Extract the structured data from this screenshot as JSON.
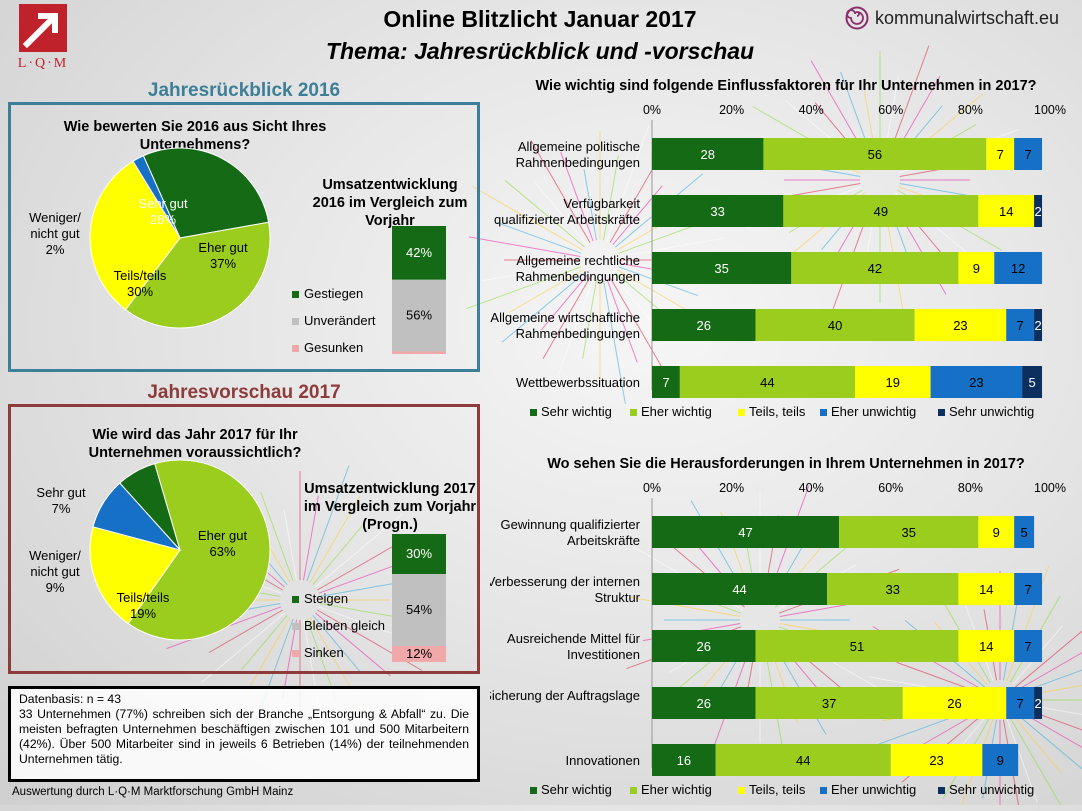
{
  "header": {
    "logo_text": "L·Q·M",
    "title_line1": "Online Blitzlicht Januar 2017",
    "title_line2": "Thema: Jahresrückblick und -vorschau",
    "brand": "kommunalwirtschaft.eu"
  },
  "colors": {
    "sehr_wichtig": "#156b15",
    "eher_wichtig": "#9acd1e",
    "teils": "#ffff00",
    "eher_unwichtig": "#1570c6",
    "sehr_unwichtig": "#0b2f5e",
    "gestiegen": "#156b15",
    "unveraendert": "#c0c0c0",
    "gesunken": "#f0a8a8",
    "panel1_border": "#3d7f98",
    "panel2_border": "#8e3b3b"
  },
  "rueckblick": {
    "section_title": "Jahresrückblick 2016",
    "pie_title": "Wie bewerten Sie 2016 aus Sicht Ihres Unternehmens?",
    "bar_title": "Umsatzentwicklung 2016 im Vergleich zum Vorjahr"
  },
  "vorschau": {
    "section_title": "Jahresvorschau 2017",
    "pie_title": "Wie wird das Jahr 2017 für Ihr Unternehmen voraussichtlich?",
    "bar_title": "Umsatzentwicklung 2017 im Vergleich zum Vorjahr (Progn.)"
  },
  "chart_data": [
    {
      "id": "pie2016",
      "type": "pie",
      "title": "Wie bewerten Sie 2016 aus Sicht Ihres Unternehmens?",
      "slices": [
        {
          "label": "Sehr gut",
          "value": 28,
          "color": "#156b15",
          "text_color": "#ffffff"
        },
        {
          "label": "Eher gut",
          "value": 37,
          "color": "#9acd1e",
          "text_color": "#000000"
        },
        {
          "label": "Teils/teils",
          "value": 30,
          "color": "#ffff00",
          "text_color": "#000000"
        },
        {
          "label": "Weniger/ nicht gut",
          "value": 2,
          "color": "#1570c6",
          "text_color": "#000000"
        }
      ]
    },
    {
      "id": "bar2016",
      "type": "bar",
      "stacked": true,
      "title": "Umsatzentwicklung 2016 im Vergleich zum Vorjahr",
      "series": [
        {
          "name": "Gestiegen",
          "value": 42,
          "color": "#156b15",
          "label": "42%"
        },
        {
          "name": "Unverändert",
          "value": 56,
          "color": "#c0c0c0",
          "label": "56%"
        },
        {
          "name": "Gesunken",
          "value": 2,
          "color": "#f0a8a8",
          "label": ""
        }
      ]
    },
    {
      "id": "pie2017",
      "type": "pie",
      "title": "Wie wird das Jahr 2017 für Ihr Unternehmen voraussichtlich?",
      "slices": [
        {
          "label": "Sehr gut",
          "value": 7,
          "color": "#156b15",
          "text_color": "#000000"
        },
        {
          "label": "Eher gut",
          "value": 63,
          "color": "#9acd1e",
          "text_color": "#000000"
        },
        {
          "label": "Teils/teils",
          "value": 19,
          "color": "#ffff00",
          "text_color": "#000000"
        },
        {
          "label": "Weniger/ nicht gut",
          "value": 9,
          "color": "#1570c6",
          "text_color": "#000000"
        }
      ]
    },
    {
      "id": "bar2017",
      "type": "bar",
      "stacked": true,
      "title": "Umsatzentwicklung 2017 im Vergleich zum Vorjahr (Progn.)",
      "series": [
        {
          "name": "Steigen",
          "value": 30,
          "color": "#156b15",
          "label": "30%"
        },
        {
          "name": "Bleiben gleich",
          "value": 54,
          "color": "#c0c0c0",
          "label": "54%"
        },
        {
          "name": "Sinken",
          "value": 12,
          "color": "#f0a8a8",
          "label": "12%"
        }
      ]
    },
    {
      "id": "einfluss",
      "type": "bar",
      "orientation": "horizontal",
      "stacked": true,
      "title": "Wie wichtig sind folgende Einflussfaktoren für Ihr Unternehmen in 2017?",
      "xlim": [
        0,
        100
      ],
      "ticks": [
        "0%",
        "20%",
        "40%",
        "60%",
        "80%",
        "100%"
      ],
      "categories": [
        "Allgemeine politische Rahmenbedingungen",
        "Verfügbarkeit qualifizierter Arbeitskräfte",
        "Allgemeine rechtliche Rahmenbedingungen",
        "Allgemeine wirtschaftliche Rahmenbedingungen",
        "Wettbewerbssituation"
      ],
      "series": [
        {
          "name": "Sehr wichtig",
          "values": [
            28,
            33,
            35,
            26,
            7
          ]
        },
        {
          "name": "Eher wichtig",
          "values": [
            56,
            49,
            42,
            40,
            44
          ]
        },
        {
          "name": "Teils, teils",
          "values": [
            7,
            14,
            9,
            23,
            19
          ]
        },
        {
          "name": "Eher unwichtig",
          "values": [
            7,
            0,
            12,
            7,
            23
          ]
        },
        {
          "name": "Sehr unwichtig",
          "values": [
            0,
            2,
            0,
            2,
            5
          ]
        }
      ]
    },
    {
      "id": "herausforderungen",
      "type": "bar",
      "orientation": "horizontal",
      "stacked": true,
      "title": "Wo sehen Sie die Herausforderungen in Ihrem Unternehmen in 2017?",
      "xlim": [
        0,
        100
      ],
      "ticks": [
        "0%",
        "20%",
        "40%",
        "60%",
        "80%",
        "100%"
      ],
      "categories": [
        "Gewinnung qualifizierter Arbeitskräfte",
        "Verbesserung der internen Struktur",
        "Ausreichende Mittel für Investitionen",
        "Sicherung der Auftragslage",
        "Innovationen"
      ],
      "series": [
        {
          "name": "Sehr wichtig",
          "values": [
            47,
            44,
            26,
            26,
            16
          ]
        },
        {
          "name": "Eher wichtig",
          "values": [
            35,
            33,
            51,
            37,
            44
          ]
        },
        {
          "name": "Teils, teils",
          "values": [
            9,
            14,
            14,
            26,
            23
          ]
        },
        {
          "name": "Eher unwichtig",
          "values": [
            5,
            7,
            7,
            7,
            9
          ]
        },
        {
          "name": "Sehr unwichtig",
          "values": [
            0,
            0,
            0,
            2,
            0
          ]
        }
      ]
    }
  ],
  "note": {
    "line1": "Datenbasis: n = 43",
    "body": "33 Unternehmen (77%) schreiben sich der Branche „Entsorgung & Abfall“ zu. Die meisten befragten Unternehmen beschäftigen zwischen 101 und 500 Mitarbeitern (42%). Über 500 Mitarbeiter sind in jeweils 6 Betrieben (14%) der teilnehmenden Unternehmen tätig."
  },
  "footer": "Auswertung durch L·Q·M Marktforschung GmbH Mainz"
}
